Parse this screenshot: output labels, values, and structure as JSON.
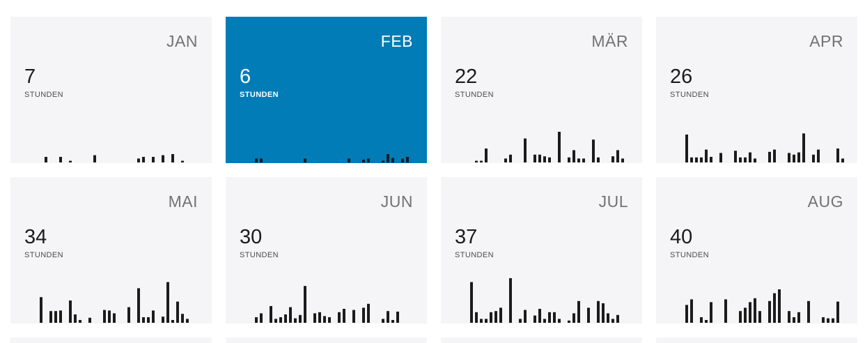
{
  "colors": {
    "card_bg": "#f5f5f7",
    "active_bg": "#017cb6",
    "bar": "#1b1b1b",
    "active_bar": "#1b1b1b",
    "month_text": "#727272"
  },
  "months": [
    {
      "label": "JAN",
      "hours": "7",
      "unit": "STUNDEN",
      "active": false,
      "daily_bars": [
        0,
        0,
        0,
        0,
        0.2,
        0,
        0,
        0.2,
        0,
        0.06,
        0,
        0,
        0,
        0,
        0.26,
        0,
        0,
        0,
        0,
        0,
        0,
        0,
        0,
        0.14,
        0.2,
        0,
        0.2,
        0,
        0.26,
        0,
        0.3,
        0,
        0.06,
        0,
        0
      ]
    },
    {
      "label": "FEB",
      "hours": "6",
      "unit": "STUNDEN",
      "active": true,
      "daily_bars": [
        0,
        0,
        0,
        0.14,
        0.14,
        0,
        0,
        0,
        0,
        0,
        0,
        0,
        0,
        0.14,
        0,
        0,
        0,
        0,
        0,
        0,
        0,
        0,
        0.14,
        0,
        0,
        0.1,
        0.14,
        0,
        0,
        0.06,
        0.3,
        0.16,
        0,
        0.14,
        0.2,
        0
      ]
    },
    {
      "label": "MÄR",
      "hours": "22",
      "unit": "STUNDEN",
      "active": false,
      "daily_bars": [
        0,
        0,
        0,
        0,
        0.06,
        0.06,
        0.5,
        0,
        0,
        0,
        0.14,
        0.28,
        0,
        0,
        0.86,
        0,
        0.28,
        0.28,
        0.22,
        0.18,
        0,
        1.1,
        0,
        0.18,
        0.44,
        0.14,
        0.14,
        0,
        0.82,
        0.18,
        0,
        0,
        0.22,
        0.44,
        0.14,
        0
      ]
    },
    {
      "label": "APR",
      "hours": "26",
      "unit": "STUNDEN",
      "active": false,
      "daily_bars": [
        0,
        0,
        0,
        1.0,
        0.18,
        0.18,
        0.18,
        0.46,
        0.2,
        0,
        0.34,
        0,
        0,
        0.42,
        0.18,
        0.18,
        0.36,
        0.14,
        0,
        0,
        0.38,
        0.46,
        0,
        0,
        0.34,
        0.28,
        0.36,
        1.04,
        0,
        0.28,
        0.46,
        0,
        0,
        0,
        0.5,
        0.14,
        0
      ]
    },
    {
      "label": "MAI",
      "hours": "34",
      "unit": "STUNDEN",
      "active": false,
      "daily_bars": [
        0,
        0,
        0,
        0.92,
        0,
        0.42,
        0.42,
        0.44,
        0,
        0.8,
        0.3,
        0.1,
        0,
        0.18,
        0,
        0,
        0.46,
        0.44,
        0.34,
        0,
        0,
        0.56,
        0,
        1.24,
        0.2,
        0.2,
        0.44,
        0,
        0.22,
        1.46,
        0.1,
        0.76,
        0.32,
        0.14,
        0
      ]
    },
    {
      "label": "JUN",
      "hours": "30",
      "unit": "STUNDEN",
      "active": false,
      "daily_bars": [
        0,
        0,
        0,
        0.2,
        0.34,
        0,
        0.6,
        0.14,
        0.2,
        0.3,
        0.56,
        0.16,
        0.28,
        1.32,
        0,
        0.34,
        0.38,
        0.24,
        0.2,
        0,
        0.38,
        0.5,
        0,
        0.46,
        0,
        0.54,
        0.68,
        0,
        0,
        0.14,
        0.42,
        0.1,
        0.4,
        0,
        0
      ]
    },
    {
      "label": "JUL",
      "hours": "37",
      "unit": "STUNDEN",
      "active": false,
      "daily_bars": [
        0,
        0,
        0,
        1.46,
        0.38,
        0.14,
        0.14,
        0.38,
        0.42,
        0.54,
        0,
        1.6,
        0,
        0.14,
        0.46,
        0,
        0.26,
        0.5,
        0.14,
        0.38,
        0.38,
        0.14,
        0,
        0.08,
        0.34,
        0.78,
        0,
        0.54,
        0,
        0.78,
        0.7,
        0.34,
        0.14,
        0.28,
        0
      ]
    },
    {
      "label": "AUG",
      "hours": "40",
      "unit": "STUNDEN",
      "active": false,
      "daily_bars": [
        0,
        0,
        0,
        0.64,
        0.84,
        0,
        0.2,
        0.1,
        0.74,
        0,
        0,
        0.84,
        0,
        0,
        0.42,
        0.54,
        0.74,
        0.88,
        0.42,
        0,
        0.78,
        1.06,
        1.2,
        0,
        0.42,
        0.2,
        0.38,
        0,
        0.78,
        0,
        0,
        0.2,
        0.16,
        0.16,
        0.76,
        0
      ]
    }
  ]
}
